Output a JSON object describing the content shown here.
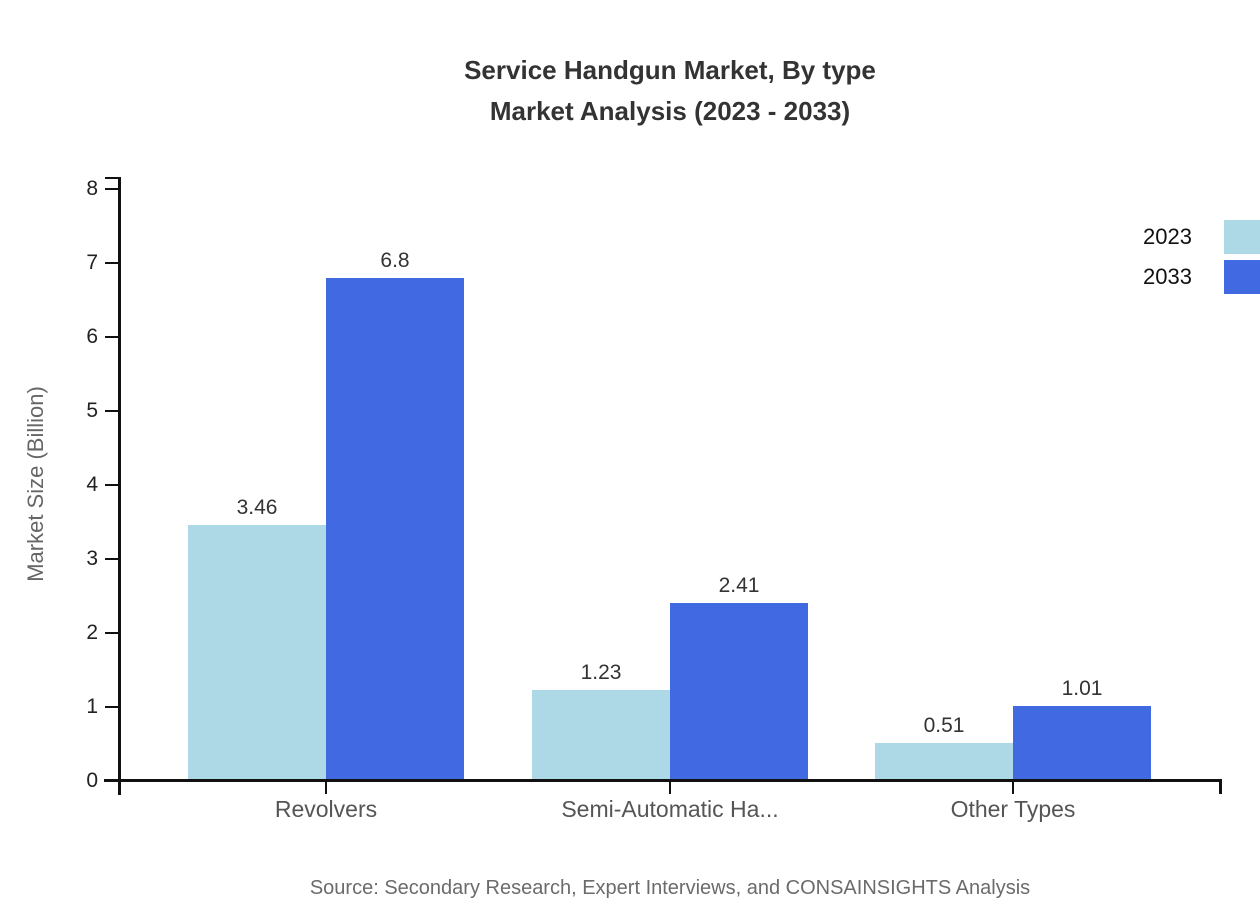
{
  "chart_data": {
    "type": "bar",
    "title_lines": [
      "Service Handgun Market, By type",
      "Market Analysis (2023 - 2033)"
    ],
    "ylabel": "Market Size (Billion)",
    "xlabel": "",
    "ylim": [
      0,
      8
    ],
    "yticks": [
      0,
      1,
      2,
      3,
      4,
      5,
      6,
      7,
      8
    ],
    "grid": false,
    "legend_position": "top-right-edge",
    "categories": [
      "Revolvers",
      "Semi-Automatic Ha...",
      "Other Types"
    ],
    "series": [
      {
        "name": "2023",
        "color": "#ADD8E6",
        "values": [
          3.46,
          1.23,
          0.51
        ],
        "labels": [
          "3.46",
          "1.23",
          "0.51"
        ]
      },
      {
        "name": "2033",
        "color": "#4169E1",
        "values": [
          6.8,
          2.41,
          1.01
        ],
        "labels": [
          "6.8",
          "2.41",
          "1.01"
        ]
      }
    ],
    "source": "Source: Secondary Research, Expert Interviews, and CONSAINSIGHTS Analysis",
    "colors": {
      "axis": "#111111",
      "title_text": "#333333",
      "tick_label_text": "#222222",
      "value_label_text": "#333333",
      "category_label_text": "#555555",
      "muted_text": "#666666",
      "background": "#ffffff"
    }
  }
}
